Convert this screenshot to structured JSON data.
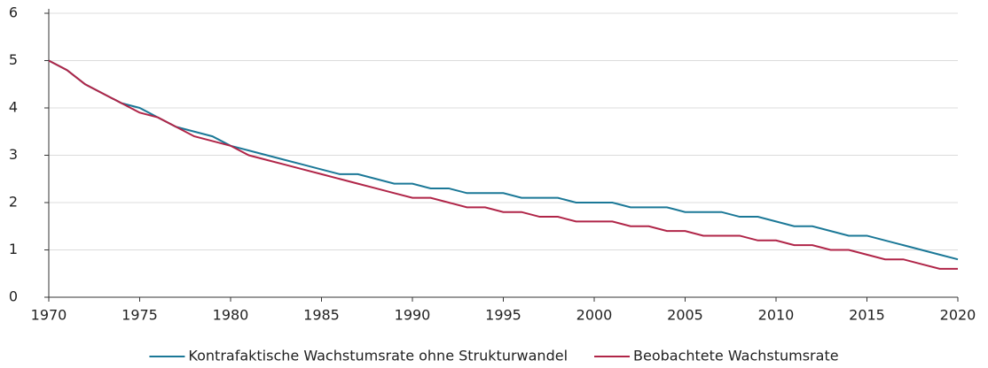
{
  "chart_data": {
    "type": "line",
    "x": [
      1970,
      1971,
      1972,
      1973,
      1974,
      1975,
      1976,
      1977,
      1978,
      1979,
      1980,
      1981,
      1982,
      1983,
      1984,
      1985,
      1986,
      1987,
      1988,
      1989,
      1990,
      1991,
      1992,
      1993,
      1994,
      1995,
      1996,
      1997,
      1998,
      1999,
      2000,
      2001,
      2002,
      2003,
      2004,
      2005,
      2006,
      2007,
      2008,
      2009,
      2010,
      2011,
      2012,
      2013,
      2014,
      2015,
      2016,
      2017,
      2018,
      2019,
      2020
    ],
    "series": [
      {
        "name": "Kontrafaktische Wachstumsrate ohne Strukturwandel",
        "color": "#1b7897",
        "values": [
          5.0,
          4.8,
          4.5,
          4.3,
          4.1,
          4.0,
          3.8,
          3.6,
          3.5,
          3.4,
          3.2,
          3.1,
          3.0,
          2.9,
          2.8,
          2.7,
          2.6,
          2.6,
          2.5,
          2.4,
          2.4,
          2.3,
          2.3,
          2.2,
          2.2,
          2.2,
          2.1,
          2.1,
          2.1,
          2.0,
          2.0,
          2.0,
          1.9,
          1.9,
          1.9,
          1.8,
          1.8,
          1.8,
          1.7,
          1.7,
          1.6,
          1.5,
          1.5,
          1.4,
          1.3,
          1.3,
          1.2,
          1.1,
          1.0,
          0.9,
          0.8
        ]
      },
      {
        "name": "Beobachtete Wachstumsrate",
        "color": "#b02548",
        "values": [
          5.0,
          4.8,
          4.5,
          4.3,
          4.1,
          3.9,
          3.8,
          3.6,
          3.4,
          3.3,
          3.2,
          3.0,
          2.9,
          2.8,
          2.7,
          2.6,
          2.5,
          2.4,
          2.3,
          2.2,
          2.1,
          2.1,
          2.0,
          1.9,
          1.9,
          1.8,
          1.8,
          1.7,
          1.7,
          1.6,
          1.6,
          1.6,
          1.5,
          1.5,
          1.4,
          1.4,
          1.3,
          1.3,
          1.3,
          1.2,
          1.2,
          1.1,
          1.1,
          1.0,
          1.0,
          0.9,
          0.8,
          0.8,
          0.7,
          0.6,
          0.6
        ]
      }
    ],
    "xlim": [
      1970,
      2020
    ],
    "xticks": [
      1970,
      1975,
      1980,
      1985,
      1990,
      1995,
      2000,
      2005,
      2010,
      2015,
      2020
    ],
    "ylim": [
      0,
      6
    ],
    "yticks": [
      0,
      1,
      2,
      3,
      4,
      5,
      6
    ],
    "grid": true,
    "legend": "bottom"
  }
}
